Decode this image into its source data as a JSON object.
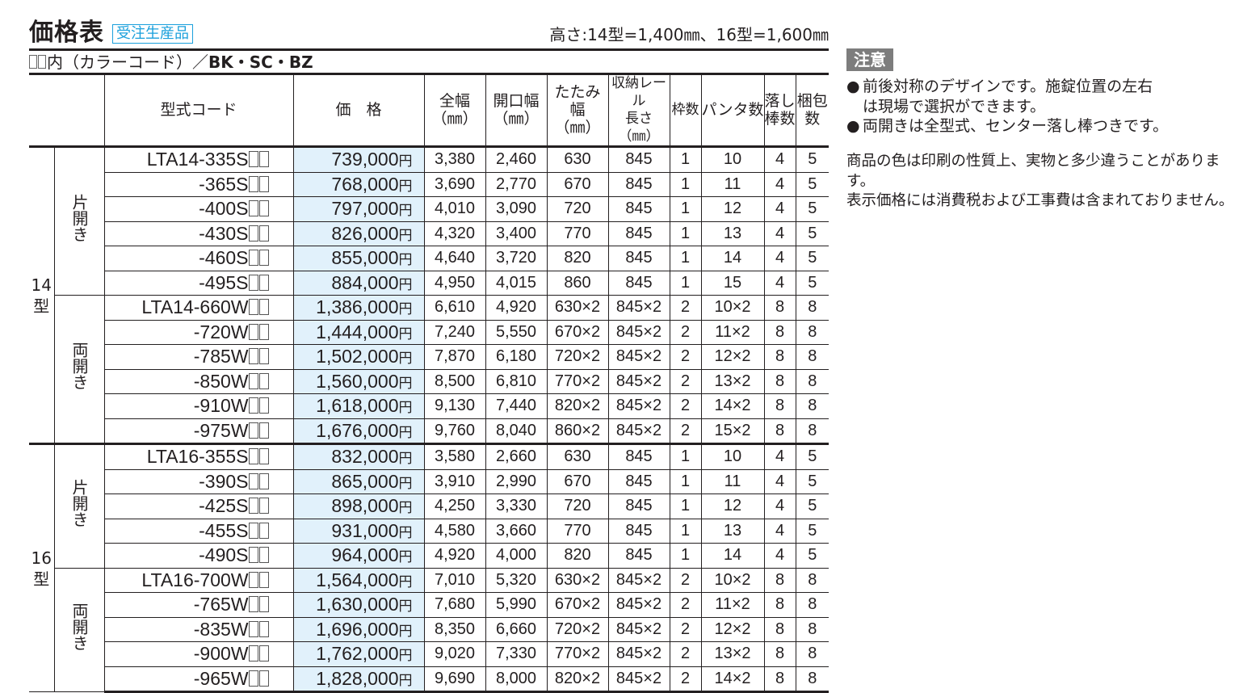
{
  "header": {
    "title": "価格表",
    "tag": "受注生産品",
    "height_note": "高さ:14型=1,400㎜、16型=1,600㎜"
  },
  "color_note": {
    "prefix": "内（カラーコード）／",
    "codes": "BK・SC・BZ"
  },
  "table": {
    "columns": {
      "model": "型式コード",
      "price": "価　格",
      "total_width_1": "全幅",
      "total_width_2": "（㎜）",
      "opening_width_1": "開口幅",
      "opening_width_2": "（㎜）",
      "folded_width_1": "たたみ幅",
      "folded_width_2": "（㎜）",
      "rail_1": "収納レール",
      "rail_2": "長さ（㎜）",
      "frames": "枠数",
      "panta": "パンタ数",
      "drop_rod_1": "落し",
      "drop_rod_2": "棒数",
      "packages_1": "梱包",
      "packages_2": "数"
    },
    "yen": "円",
    "groups": [
      {
        "size_label_num": "14",
        "size_label_unit": "型",
        "subgroups": [
          {
            "label": "片開き",
            "rows": [
              {
                "model": "LTA14-335S",
                "price": "739,000",
                "total_width": "3,380",
                "opening_width": "2,460",
                "folded_width": "630",
                "rail": "845",
                "frames": "1",
                "panta": "10",
                "drop_rods": "4",
                "packages": "5"
              },
              {
                "model": "-365S",
                "price": "768,000",
                "total_width": "3,690",
                "opening_width": "2,770",
                "folded_width": "670",
                "rail": "845",
                "frames": "1",
                "panta": "11",
                "drop_rods": "4",
                "packages": "5"
              },
              {
                "model": "-400S",
                "price": "797,000",
                "total_width": "4,010",
                "opening_width": "3,090",
                "folded_width": "720",
                "rail": "845",
                "frames": "1",
                "panta": "12",
                "drop_rods": "4",
                "packages": "5"
              },
              {
                "model": "-430S",
                "price": "826,000",
                "total_width": "4,320",
                "opening_width": "3,400",
                "folded_width": "770",
                "rail": "845",
                "frames": "1",
                "panta": "13",
                "drop_rods": "4",
                "packages": "5"
              },
              {
                "model": "-460S",
                "price": "855,000",
                "total_width": "4,640",
                "opening_width": "3,720",
                "folded_width": "820",
                "rail": "845",
                "frames": "1",
                "panta": "14",
                "drop_rods": "4",
                "packages": "5"
              },
              {
                "model": "-495S",
                "price": "884,000",
                "total_width": "4,950",
                "opening_width": "4,015",
                "folded_width": "860",
                "rail": "845",
                "frames": "1",
                "panta": "15",
                "drop_rods": "4",
                "packages": "5"
              }
            ]
          },
          {
            "label": "両開き",
            "rows": [
              {
                "model": "LTA14-660W",
                "price": "1,386,000",
                "total_width": "6,610",
                "opening_width": "4,920",
                "folded_width": "630×2",
                "rail": "845×2",
                "frames": "2",
                "panta": "10×2",
                "drop_rods": "8",
                "packages": "8"
              },
              {
                "model": "-720W",
                "price": "1,444,000",
                "total_width": "7,240",
                "opening_width": "5,550",
                "folded_width": "670×2",
                "rail": "845×2",
                "frames": "2",
                "panta": "11×2",
                "drop_rods": "8",
                "packages": "8"
              },
              {
                "model": "-785W",
                "price": "1,502,000",
                "total_width": "7,870",
                "opening_width": "6,180",
                "folded_width": "720×2",
                "rail": "845×2",
                "frames": "2",
                "panta": "12×2",
                "drop_rods": "8",
                "packages": "8"
              },
              {
                "model": "-850W",
                "price": "1,560,000",
                "total_width": "8,500",
                "opening_width": "6,810",
                "folded_width": "770×2",
                "rail": "845×2",
                "frames": "2",
                "panta": "13×2",
                "drop_rods": "8",
                "packages": "8"
              },
              {
                "model": "-910W",
                "price": "1,618,000",
                "total_width": "9,130",
                "opening_width": "7,440",
                "folded_width": "820×2",
                "rail": "845×2",
                "frames": "2",
                "panta": "14×2",
                "drop_rods": "8",
                "packages": "8"
              },
              {
                "model": "-975W",
                "price": "1,676,000",
                "total_width": "9,760",
                "opening_width": "8,040",
                "folded_width": "860×2",
                "rail": "845×2",
                "frames": "2",
                "panta": "15×2",
                "drop_rods": "8",
                "packages": "8"
              }
            ]
          }
        ]
      },
      {
        "size_label_num": "16",
        "size_label_unit": "型",
        "subgroups": [
          {
            "label": "片開き",
            "rows": [
              {
                "model": "LTA16-355S",
                "price": "832,000",
                "total_width": "3,580",
                "opening_width": "2,660",
                "folded_width": "630",
                "rail": "845",
                "frames": "1",
                "panta": "10",
                "drop_rods": "4",
                "packages": "5"
              },
              {
                "model": "-390S",
                "price": "865,000",
                "total_width": "3,910",
                "opening_width": "2,990",
                "folded_width": "670",
                "rail": "845",
                "frames": "1",
                "panta": "11",
                "drop_rods": "4",
                "packages": "5"
              },
              {
                "model": "-425S",
                "price": "898,000",
                "total_width": "4,250",
                "opening_width": "3,330",
                "folded_width": "720",
                "rail": "845",
                "frames": "1",
                "panta": "12",
                "drop_rods": "4",
                "packages": "5"
              },
              {
                "model": "-455S",
                "price": "931,000",
                "total_width": "4,580",
                "opening_width": "3,660",
                "folded_width": "770",
                "rail": "845",
                "frames": "1",
                "panta": "13",
                "drop_rods": "4",
                "packages": "5"
              },
              {
                "model": "-490S",
                "price": "964,000",
                "total_width": "4,920",
                "opening_width": "4,000",
                "folded_width": "820",
                "rail": "845",
                "frames": "1",
                "panta": "14",
                "drop_rods": "4",
                "packages": "5"
              }
            ]
          },
          {
            "label": "両開き",
            "rows": [
              {
                "model": "LTA16-700W",
                "price": "1,564,000",
                "total_width": "7,010",
                "opening_width": "5,320",
                "folded_width": "630×2",
                "rail": "845×2",
                "frames": "2",
                "panta": "10×2",
                "drop_rods": "8",
                "packages": "8"
              },
              {
                "model": "-765W",
                "price": "1,630,000",
                "total_width": "7,680",
                "opening_width": "5,990",
                "folded_width": "670×2",
                "rail": "845×2",
                "frames": "2",
                "panta": "11×2",
                "drop_rods": "8",
                "packages": "8"
              },
              {
                "model": "-835W",
                "price": "1,696,000",
                "total_width": "8,350",
                "opening_width": "6,660",
                "folded_width": "720×2",
                "rail": "845×2",
                "frames": "2",
                "panta": "12×2",
                "drop_rods": "8",
                "packages": "8"
              },
              {
                "model": "-900W",
                "price": "1,762,000",
                "total_width": "9,020",
                "opening_width": "7,330",
                "folded_width": "770×2",
                "rail": "845×2",
                "frames": "2",
                "panta": "13×2",
                "drop_rods": "8",
                "packages": "8"
              },
              {
                "model": "-965W",
                "price": "1,828,000",
                "total_width": "9,690",
                "opening_width": "8,000",
                "folded_width": "820×2",
                "rail": "845×2",
                "frames": "2",
                "panta": "14×2",
                "drop_rods": "8",
                "packages": "8"
              }
            ]
          }
        ]
      }
    ]
  },
  "notice": {
    "badge": "注意",
    "bullet": "●",
    "items": [
      "前後対称のデザインです。施錠位置の左右は現場で選択ができます。",
      "両開きは全型式、センター落し棒つきです。"
    ],
    "item1_line1": "前後対称のデザインです。施錠位置の左右",
    "item1_line2": "は現場で選択ができます。",
    "footnote_line1": "商品の色は印刷の性質上、実物と多少違うことがあります。",
    "footnote_line2": "表示価格には消費税および工事費は含まれておりません。"
  },
  "colors": {
    "tag_blue": "#1aa0dc",
    "price_bg": "#e1f1fb",
    "badge_gray": "#7d7d7d",
    "text": "#231f20"
  }
}
